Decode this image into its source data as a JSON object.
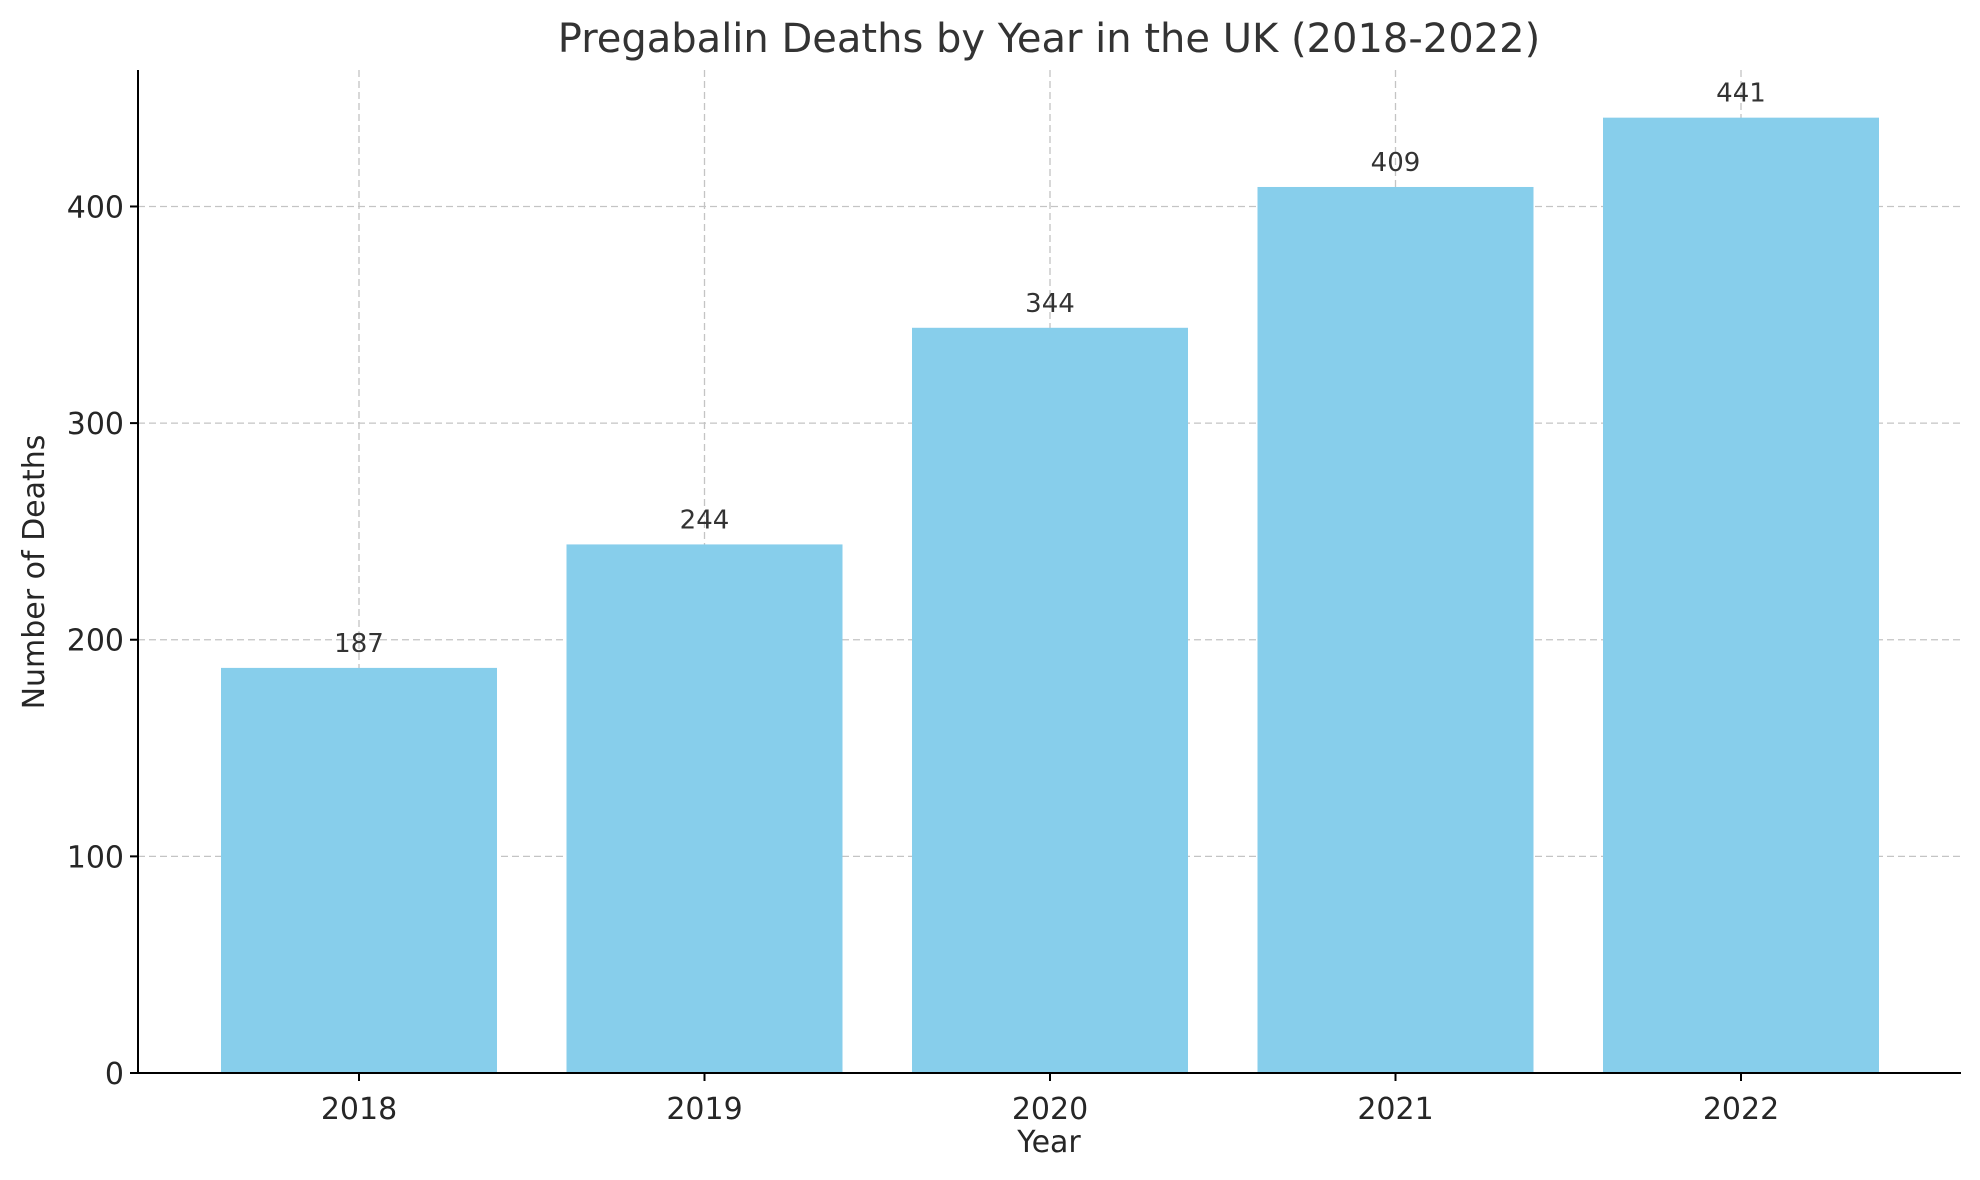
{
  "chart_data": {
    "type": "bar",
    "title": "Pregabalin Deaths by Year in the UK (2018-2022)",
    "xlabel": "Year",
    "ylabel": "Number of Deaths",
    "categories": [
      "2018",
      "2019",
      "2020",
      "2021",
      "2022"
    ],
    "values": [
      187,
      244,
      344,
      409,
      441
    ],
    "data_labels": [
      "187",
      "244",
      "344",
      "409",
      "441"
    ],
    "ylim": [
      0,
      463
    ],
    "yticks": [
      0,
      100,
      200,
      300,
      400
    ],
    "ytick_labels": [
      "0",
      "100",
      "200",
      "300",
      "400"
    ],
    "grid": true,
    "bar_color": "#87CEEB"
  }
}
